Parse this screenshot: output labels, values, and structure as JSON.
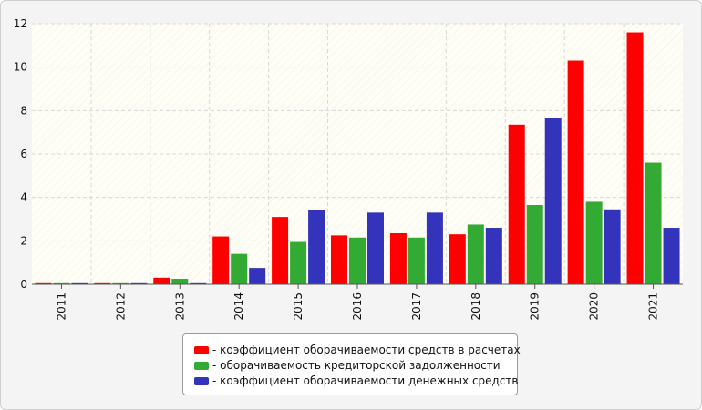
{
  "chart_data": {
    "type": "bar",
    "categories": [
      "2011",
      "2012",
      "2013",
      "2014",
      "2015",
      "2016",
      "2017",
      "2018",
      "2019",
      "2020",
      "2021"
    ],
    "series": [
      {
        "name": "- коэффициент оборачиваемости средств в расчетах",
        "color": "#ff0000",
        "values": [
          0.05,
          0.05,
          0.3,
          2.2,
          3.1,
          2.25,
          2.35,
          2.3,
          7.35,
          10.3,
          11.6
        ]
      },
      {
        "name": "- оборачиваемость кредиторской задолженности",
        "color": "#33aa33",
        "values": [
          0.05,
          0.05,
          0.25,
          1.4,
          1.95,
          2.15,
          2.15,
          2.75,
          3.65,
          3.8,
          5.6
        ]
      },
      {
        "name": "- коэффициент оборачиваемости денежных средств",
        "color": "#3333bb",
        "values": [
          0.05,
          0.05,
          0.05,
          0.75,
          3.4,
          3.3,
          3.3,
          2.6,
          7.65,
          3.45,
          2.6
        ]
      }
    ],
    "ylim": [
      0,
      12
    ],
    "yticks": [
      "0",
      "2",
      "4",
      "6",
      "8",
      "10",
      "12"
    ],
    "grid": true,
    "legend_position": "bottom"
  }
}
